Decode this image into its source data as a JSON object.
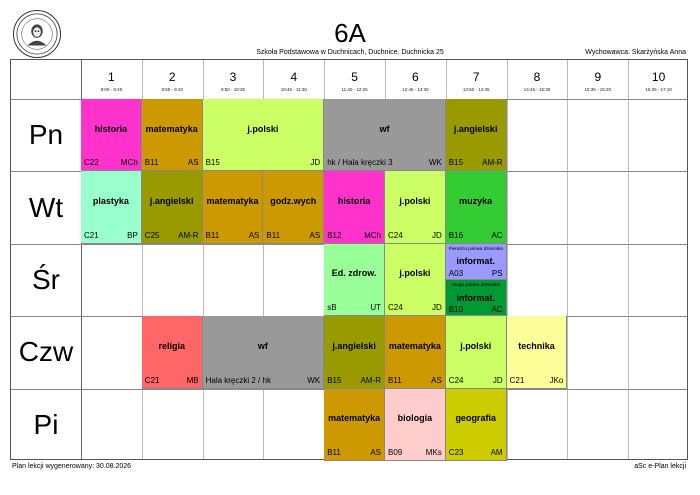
{
  "header": {
    "class_name": "6A",
    "school": "Szkoła Podstawowa w Duchnicach, Duchnice, Duchnicka 25",
    "teacher": "Wychowawca: Skarżyńska Anna"
  },
  "periods": [
    {
      "num": "1",
      "time": "8:00 - 8:45"
    },
    {
      "num": "2",
      "time": "8:55 - 9:40"
    },
    {
      "num": "3",
      "time": "9:50 - 10:35"
    },
    {
      "num": "4",
      "time": "10:45 - 11:30"
    },
    {
      "num": "5",
      "time": "11:40 - 12:25"
    },
    {
      "num": "6",
      "time": "12:45 - 13:30"
    },
    {
      "num": "7",
      "time": "13:50 - 14:35"
    },
    {
      "num": "8",
      "time": "14:45 - 15:30"
    },
    {
      "num": "9",
      "time": "15:35 - 16:20"
    },
    {
      "num": "10",
      "time": "16:25 - 17:10"
    }
  ],
  "days": [
    "Pn",
    "Wt",
    "Śr",
    "Czw",
    "Pi"
  ],
  "lessons": [
    {
      "day": 0,
      "start": 1,
      "span": 1,
      "subject": "historia",
      "room": "C22",
      "teacher": "MCh",
      "color": "#ff33cc"
    },
    {
      "day": 0,
      "start": 2,
      "span": 1,
      "subject": "matematyka",
      "room": "B11",
      "teacher": "AS",
      "color": "#cc9a00"
    },
    {
      "day": 0,
      "start": 3,
      "span": 2,
      "subject": "j.polski",
      "room": "B15",
      "teacher": "JD",
      "color": "#ccff66"
    },
    {
      "day": 0,
      "start": 5,
      "span": 2,
      "subject": "wf",
      "room": "hk / Hala kręczki 3",
      "teacher": "WK",
      "color": "#999999"
    },
    {
      "day": 0,
      "start": 7,
      "span": 1,
      "subject": "j.angielski",
      "room": "B15",
      "teacher": "AM-R",
      "color": "#999900"
    },
    {
      "day": 1,
      "start": 1,
      "span": 1,
      "subject": "plastyka",
      "room": "C21",
      "teacher": "BP",
      "color": "#99ffcc"
    },
    {
      "day": 1,
      "start": 2,
      "span": 1,
      "subject": "j.angielski",
      "room": "C25",
      "teacher": "AM-R",
      "color": "#999900"
    },
    {
      "day": 1,
      "start": 3,
      "span": 1,
      "subject": "matematyka",
      "room": "B11",
      "teacher": "AS",
      "color": "#cc9a00"
    },
    {
      "day": 1,
      "start": 4,
      "span": 1,
      "subject": "godz.wych",
      "room": "B11",
      "teacher": "AS",
      "color": "#cc9a00"
    },
    {
      "day": 1,
      "start": 5,
      "span": 1,
      "subject": "historia",
      "room": "B12",
      "teacher": "MCh",
      "color": "#ff33cc"
    },
    {
      "day": 1,
      "start": 6,
      "span": 1,
      "subject": "j.polski",
      "room": "C24",
      "teacher": "JD",
      "color": "#ccff66"
    },
    {
      "day": 1,
      "start": 7,
      "span": 1,
      "subject": "muzyka",
      "room": "B16",
      "teacher": "AC",
      "color": "#33cc33"
    },
    {
      "day": 2,
      "start": 5,
      "span": 1,
      "subject": "Ed. zdrow.",
      "room": "sB",
      "teacher": "UT",
      "color": "#99ff99"
    },
    {
      "day": 2,
      "start": 6,
      "span": 1,
      "subject": "j.polski",
      "room": "C24",
      "teacher": "JD",
      "color": "#ccff66"
    },
    {
      "day": 3,
      "start": 2,
      "span": 1,
      "subject": "religia",
      "room": "C21",
      "teacher": "MB",
      "color": "#ff6666"
    },
    {
      "day": 3,
      "start": 3,
      "span": 2,
      "subject": "wf",
      "room": "Hala kręczki 2 / hk",
      "teacher": "WK",
      "color": "#999999"
    },
    {
      "day": 3,
      "start": 5,
      "span": 1,
      "subject": "j.angielski",
      "room": "B15",
      "teacher": "AM-R",
      "color": "#999900"
    },
    {
      "day": 3,
      "start": 6,
      "span": 1,
      "subject": "matematyka",
      "room": "B11",
      "teacher": "AS",
      "color": "#cc9a00"
    },
    {
      "day": 3,
      "start": 7,
      "span": 1,
      "subject": "j.polski",
      "room": "C24",
      "teacher": "JD",
      "color": "#ccff66"
    },
    {
      "day": 3,
      "start": 8,
      "span": 1,
      "subject": "technika",
      "room": "C21",
      "teacher": "JKo",
      "color": "#ffff99"
    },
    {
      "day": 4,
      "start": 5,
      "span": 1,
      "subject": "matematyka",
      "room": "B11",
      "teacher": "AS",
      "color": "#cc9a00"
    },
    {
      "day": 4,
      "start": 6,
      "span": 1,
      "subject": "biologia",
      "room": "B09",
      "teacher": "MKs",
      "color": "#ffcccc"
    },
    {
      "day": 4,
      "start": 7,
      "span": 1,
      "subject": "geografia",
      "room": "C23",
      "teacher": "AM",
      "color": "#cccc00"
    }
  ],
  "split_lessons": [
    {
      "day": 2,
      "start": 7,
      "part": 0,
      "note": "Pierwsza połowa dziennika",
      "subject": "informat.",
      "room": "A03",
      "teacher": "PS",
      "color": "#9999ff"
    },
    {
      "day": 2,
      "start": 7,
      "part": 1,
      "note": "Druga połowa dziennika",
      "subject": "informat.",
      "room": "B10",
      "teacher": "AC",
      "color": "#009933"
    }
  ],
  "footer": {
    "generated": "Plan lekcji wygenerowany: 30.08.2026",
    "software": "aSc e-Plan lekcji"
  }
}
